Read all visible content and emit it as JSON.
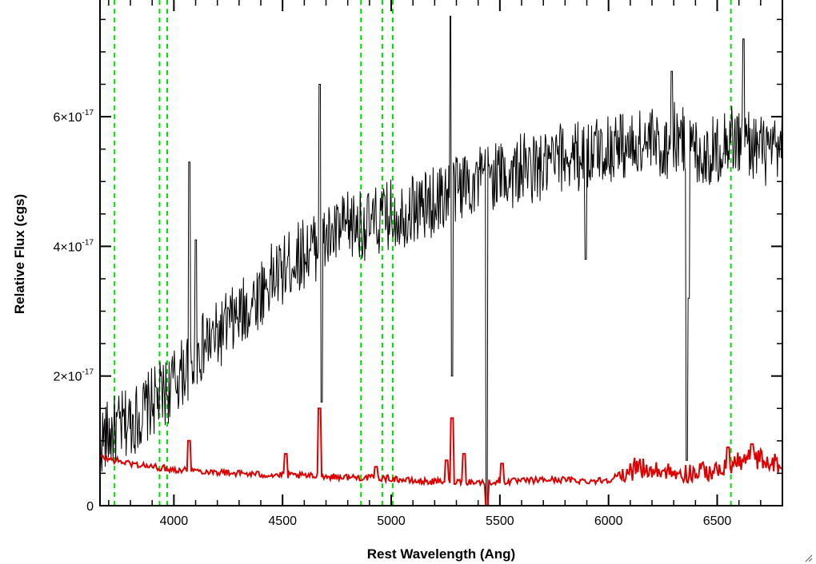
{
  "chart_data": {
    "type": "line",
    "title": "",
    "xlabel": "Rest Wavelength (Ang)",
    "ylabel": "Relative Flux (cgs)",
    "xlim": [
      3660,
      6800
    ],
    "ylim": [
      0,
      7.8
    ],
    "y_scale_note": "x10^-17",
    "x_ticks": [
      4000,
      4500,
      5000,
      5500,
      6000,
      6500
    ],
    "x_tick_labels": [
      "4000",
      "4500",
      "5000",
      "5500",
      "6000",
      "6500"
    ],
    "y_ticks": [
      0,
      2,
      4,
      6
    ],
    "y_tick_labels": [
      {
        "base": "0",
        "exp": ""
      },
      {
        "base": "2×10",
        "exp": "-17"
      },
      {
        "base": "4×10",
        "exp": "-17"
      },
      {
        "base": "6×10",
        "exp": "-17"
      }
    ],
    "grid": false,
    "legend": "none",
    "reference_lines": {
      "color": "#00dd00",
      "style": "dashed",
      "x": [
        3727,
        3934,
        3969,
        4861,
        4959,
        5007,
        6563
      ]
    },
    "series": [
      {
        "color": "#000000",
        "x": [
          3660,
          3700,
          3750,
          3800,
          3850,
          3900,
          3950,
          4000,
          4050,
          4100,
          4150,
          4200,
          4250,
          4300,
          4350,
          4400,
          4450,
          4500,
          4550,
          4600,
          4650,
          4700,
          4750,
          4800,
          4850,
          4900,
          4950,
          5000,
          5050,
          5100,
          5150,
          5200,
          5250,
          5300,
          5350,
          5400,
          5450,
          5500,
          5550,
          5600,
          5650,
          5700,
          5750,
          5800,
          5850,
          5900,
          5950,
          6000,
          6050,
          6100,
          6150,
          6200,
          6250,
          6300,
          6350,
          6400,
          6450,
          6500,
          6550,
          6600,
          6650,
          6700,
          6750,
          6800
        ],
        "y": [
          1.0,
          1.1,
          1.2,
          1.3,
          1.4,
          1.6,
          1.7,
          1.9,
          2.1,
          2.3,
          2.5,
          2.6,
          2.8,
          2.9,
          3.1,
          3.3,
          3.5,
          3.6,
          3.8,
          3.9,
          4.0,
          4.1,
          4.2,
          4.3,
          4.35,
          4.3,
          4.4,
          4.5,
          4.5,
          4.6,
          4.6,
          4.7,
          4.8,
          4.9,
          5.0,
          5.0,
          5.1,
          5.1,
          5.1,
          5.2,
          5.2,
          5.2,
          5.3,
          5.4,
          5.4,
          5.4,
          5.5,
          5.5,
          5.6,
          5.5,
          5.6,
          5.6,
          5.5,
          5.7,
          5.6,
          5.5,
          5.4,
          5.5,
          5.7,
          5.6,
          5.6,
          5.5,
          5.4,
          5.5
        ],
        "features": [
          {
            "x": 4070,
            "y": 5.3
          },
          {
            "x": 4100,
            "y": 4.1
          },
          {
            "x": 4670,
            "y": 6.5
          },
          {
            "x": 4680,
            "y": 1.6
          },
          {
            "x": 5275,
            "y": 7.55
          },
          {
            "x": 5280,
            "y": 2.0
          },
          {
            "x": 5440,
            "y": 0.0
          },
          {
            "x": 5895,
            "y": 3.8
          },
          {
            "x": 6290,
            "y": 6.7
          },
          {
            "x": 6360,
            "y": 0.7
          },
          {
            "x": 6370,
            "y": 3.2
          },
          {
            "x": 6620,
            "y": 7.2
          }
        ]
      },
      {
        "color": "#dd0000",
        "x": [
          3660,
          3700,
          3800,
          3900,
          4000,
          4100,
          4200,
          4300,
          4400,
          4500,
          4600,
          4700,
          4800,
          4900,
          5000,
          5100,
          5200,
          5300,
          5400,
          5500,
          5600,
          5700,
          5800,
          5900,
          6000,
          6100,
          6200,
          6300,
          6400,
          6500,
          6600,
          6700,
          6800
        ],
        "y": [
          0.75,
          0.72,
          0.65,
          0.6,
          0.56,
          0.54,
          0.52,
          0.5,
          0.48,
          0.47,
          0.46,
          0.45,
          0.44,
          0.43,
          0.42,
          0.38,
          0.37,
          0.38,
          0.36,
          0.37,
          0.38,
          0.4,
          0.4,
          0.38,
          0.4,
          0.55,
          0.55,
          0.5,
          0.5,
          0.55,
          0.68,
          0.7,
          0.6
        ],
        "features": [
          {
            "x": 4070,
            "y": 1.0
          },
          {
            "x": 4515,
            "y": 0.8
          },
          {
            "x": 4670,
            "y": 1.5
          },
          {
            "x": 4930,
            "y": 0.6
          },
          {
            "x": 5255,
            "y": 0.7
          },
          {
            "x": 5280,
            "y": 1.35
          },
          {
            "x": 5335,
            "y": 0.8
          },
          {
            "x": 5440,
            "y": 0.0
          },
          {
            "x": 5510,
            "y": 0.65
          },
          {
            "x": 6550,
            "y": 0.9
          },
          {
            "x": 6660,
            "y": 0.95
          }
        ]
      }
    ]
  },
  "window": {
    "resize_grip_icon": "resize-grip-icon"
  }
}
